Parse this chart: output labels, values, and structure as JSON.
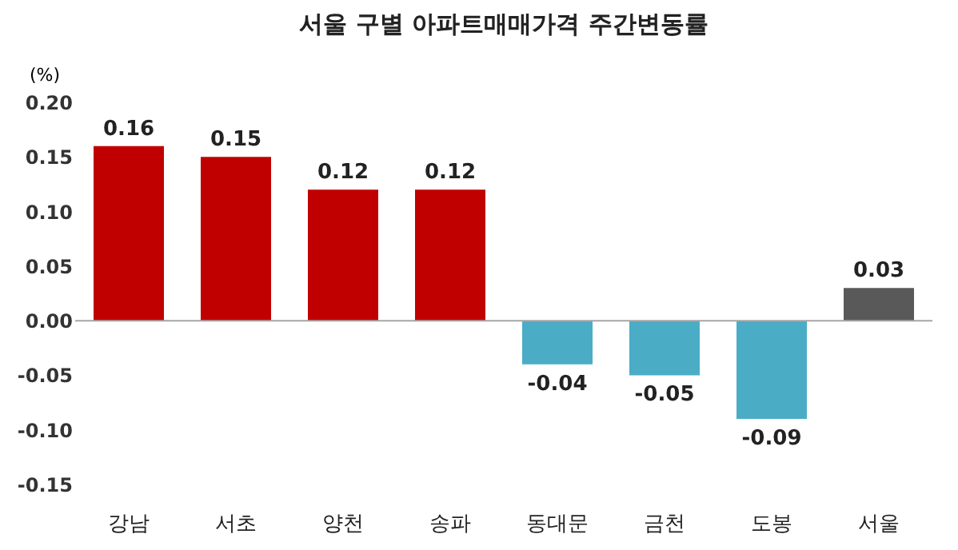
{
  "chart_data": {
    "type": "bar",
    "title": "서울 구별 아파트매매가격 주간변동률",
    "ylabel": "(%)",
    "categories": [
      "강남",
      "서초",
      "양천",
      "송파",
      "동대문",
      "금천",
      "도봉",
      "서울"
    ],
    "values": [
      0.16,
      0.15,
      0.12,
      0.12,
      -0.04,
      -0.05,
      -0.09,
      0.03
    ],
    "colors": [
      "#c00000",
      "#c00000",
      "#c00000",
      "#c00000",
      "#4bacc6",
      "#4bacc6",
      "#4bacc6",
      "#595959"
    ],
    "ylim": [
      -0.15,
      0.2
    ],
    "yticks": [
      {
        "value": -0.15,
        "label": "-0.15"
      },
      {
        "value": -0.1,
        "label": "-0.10"
      },
      {
        "value": -0.05,
        "label": "-0.05"
      },
      {
        "value": 0,
        "label": "0.00"
      },
      {
        "value": 0.05,
        "label": "0.05"
      },
      {
        "value": 0.1,
        "label": "0.10"
      },
      {
        "value": 0.15,
        "label": "0.15"
      },
      {
        "value": 0.2,
        "label": "0.20"
      }
    ],
    "data_labels": true,
    "grid": false,
    "ref_lines": [
      {
        "axis": "y",
        "value": 0,
        "color": "#a6a6a6"
      }
    ]
  }
}
